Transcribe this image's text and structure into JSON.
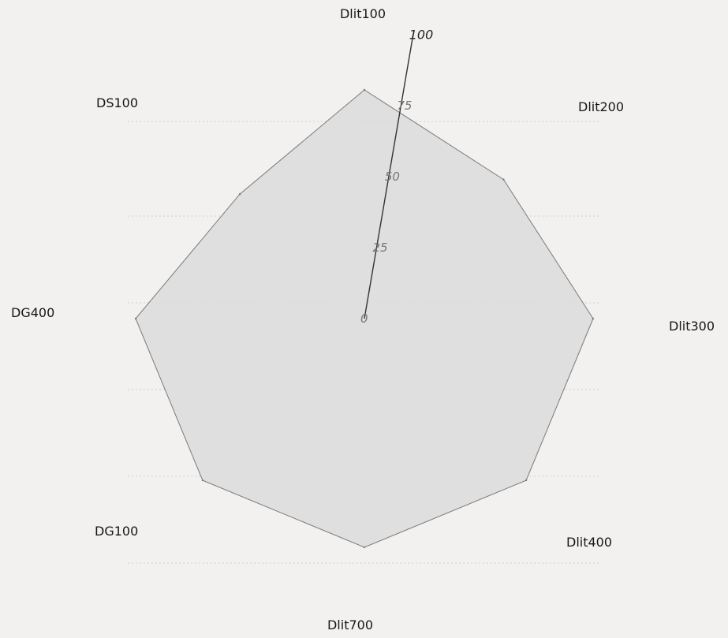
{
  "chart_data": {
    "type": "radar",
    "axes": [
      "Dlit100",
      "Dlit200",
      "Dlit300",
      "Dlit400",
      "Dlit700",
      "DG100",
      "DG400",
      "DS100"
    ],
    "values": [
      100,
      86,
      100,
      100,
      100,
      100,
      100,
      77
    ],
    "range": [
      0,
      100
    ],
    "ticks": [
      "0",
      "25",
      "50",
      "75",
      "100"
    ],
    "fill_color": "#dcdcdc",
    "stroke_color": "#7a7a7a",
    "grid_color": "#cfcfcf",
    "background_color": "#f2f1f0"
  }
}
